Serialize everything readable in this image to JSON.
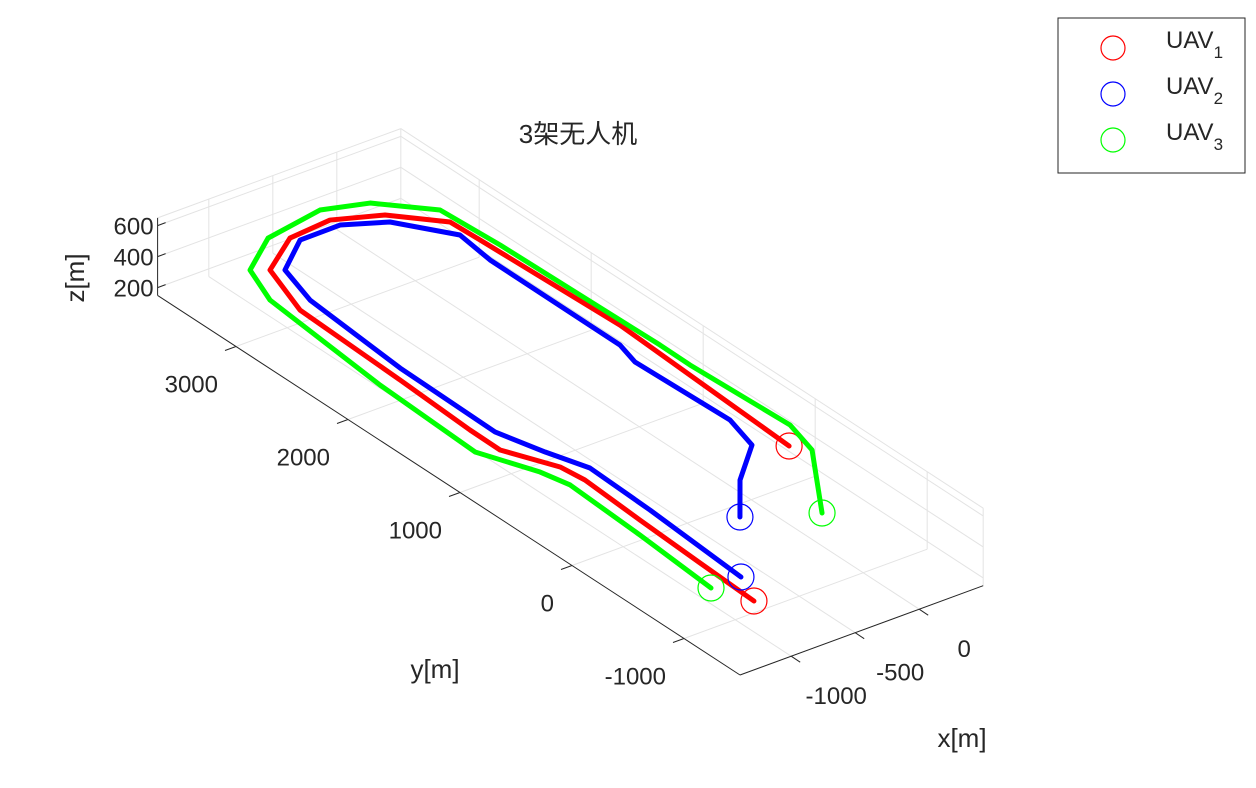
{
  "chart_data": {
    "type": "line3d",
    "title": "3架无人机",
    "xlabel": "x[m]",
    "ylabel": "y[m]",
    "zlabel": "z[m]",
    "xlim": [
      -1400,
      500
    ],
    "ylim": [
      -1500,
      3700
    ],
    "zlim": [
      150,
      650
    ],
    "xticks": [
      -1000,
      -500,
      0
    ],
    "yticks": [
      -1000,
      0,
      1000,
      2000,
      3000
    ],
    "zticks": [
      200,
      400,
      600
    ],
    "grid": true,
    "legend": "northeast",
    "endpoint_marker": "circle",
    "series": [
      {
        "name": "UAV1",
        "color": "#ff0000",
        "x": [
          -1060,
          -1038,
          -1009,
          -977,
          -1001,
          -1171,
          -1168,
          -1134,
          -1098,
          -941,
          -596,
          -258,
          56,
          327,
          339,
          386,
          304
        ],
        "y": [
          -1236,
          -729,
          -159,
          368,
          562,
          904,
          1176,
          1839,
          2774,
          3221,
          3437,
          3466,
          3333,
          3063,
          2808,
          1613,
          9
        ],
        "z": [
          400,
          400,
          400,
          400,
          400,
          400,
          400,
          400,
          400,
          400,
          400,
          400,
          400,
          400,
          400,
          400,
          400
        ]
      },
      {
        "name": "UAV2",
        "color": "#0000ff",
        "x": [
          -941,
          -882,
          -860,
          -961,
          -1058,
          -1042,
          -971,
          -866,
          -561,
          -246,
          27,
          277,
          236,
          233,
          178,
          208,
          126,
          -202,
          -486
        ],
        "y": [
          -984,
          -104,
          457,
          741,
          1078,
          1944,
          2829,
          3173,
          3387,
          3390,
          3256,
          2917,
          2601,
          1438,
          1241,
          427,
          137,
          -131,
          -455
        ],
        "z": [
          400,
          400,
          400,
          400,
          400,
          400,
          400,
          400,
          400,
          400,
          400,
          400,
          400,
          400,
          400,
          400,
          400,
          400,
          400
        ]
      },
      {
        "name": "UAV3",
        "color": "#00ff00",
        "x": [
          -1175,
          -1124,
          -1089,
          -1140,
          -1311,
          -1273,
          -1171,
          -1041,
          -706,
          -231,
          73,
          369,
          401,
          433,
          430,
          470,
          388,
          -45
        ],
        "y": [
          -984,
          -291,
          372,
          582,
          967,
          1859,
          2958,
          3285,
          3507,
          3586,
          3486,
          3200,
          2700,
          1309,
          1038,
          190,
          -100,
          -684
        ],
        "z": [
          400,
          400,
          400,
          400,
          400,
          400,
          400,
          400,
          400,
          400,
          400,
          400,
          400,
          400,
          400,
          400,
          400,
          400
        ]
      }
    ]
  }
}
